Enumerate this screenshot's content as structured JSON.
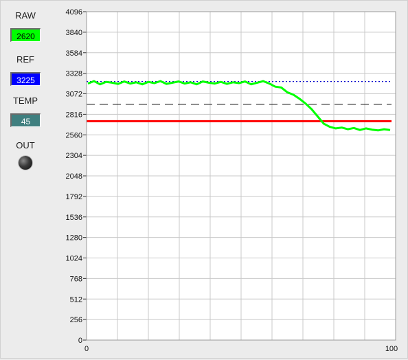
{
  "panel": {
    "raw_label": "RAW",
    "raw_value": "2620",
    "ref_label": "REF",
    "ref_value": "3225",
    "temp_label": "TEMP",
    "temp_value": "45",
    "out_label": "OUT"
  },
  "colors": {
    "raw_bg": "#00ff00",
    "ref_bg": "#0000ff",
    "temp_bg": "#3f7f7f",
    "signal": "#00ff00",
    "reference": "#0000cc",
    "threshold_dash": "#111111",
    "threshold_solid": "#ff0000"
  },
  "chart_data": {
    "type": "line",
    "xlim": [
      0,
      100
    ],
    "ylim": [
      0,
      4096
    ],
    "x_tick_labels": [
      "0",
      "100"
    ],
    "y_ticks": [
      0,
      256,
      512,
      768,
      1024,
      1280,
      1536,
      1792,
      2048,
      2304,
      2560,
      2816,
      3072,
      3328,
      3584,
      3840,
      4096
    ],
    "y_tick_labels": [
      "0",
      "256",
      "512",
      "768",
      "1024",
      "1280",
      "1536",
      "1792",
      "2048",
      "2304",
      "2560",
      "2816",
      "3072",
      "3328",
      "3584",
      "3840",
      "4096"
    ],
    "grid": true,
    "reference_level": 3225,
    "dashed_level": 2940,
    "red_level": 2730,
    "series": [
      {
        "x": [
          0,
          2,
          4,
          6,
          8,
          10,
          12,
          14,
          16,
          18,
          20,
          22,
          24,
          26,
          28,
          30,
          32,
          34,
          36,
          38,
          40,
          42,
          44,
          46,
          48,
          50,
          52,
          54,
          56,
          58,
          60,
          62,
          64,
          66,
          68,
          70,
          72,
          74,
          76,
          78,
          80,
          82,
          84,
          86,
          88,
          90,
          92,
          94,
          96,
          98,
          100
        ],
        "y": [
          3200,
          3230,
          3190,
          3220,
          3210,
          3195,
          3225,
          3200,
          3215,
          3190,
          3220,
          3205,
          3230,
          3195,
          3210,
          3225,
          3200,
          3215,
          3190,
          3225,
          3210,
          3200,
          3220,
          3195,
          3215,
          3205,
          3225,
          3190,
          3210,
          3230,
          3200,
          3160,
          3150,
          3090,
          3060,
          3010,
          2950,
          2880,
          2790,
          2700,
          2660,
          2640,
          2650,
          2630,
          2645,
          2620,
          2640,
          2625,
          2615,
          2630,
          2620
        ]
      }
    ]
  }
}
